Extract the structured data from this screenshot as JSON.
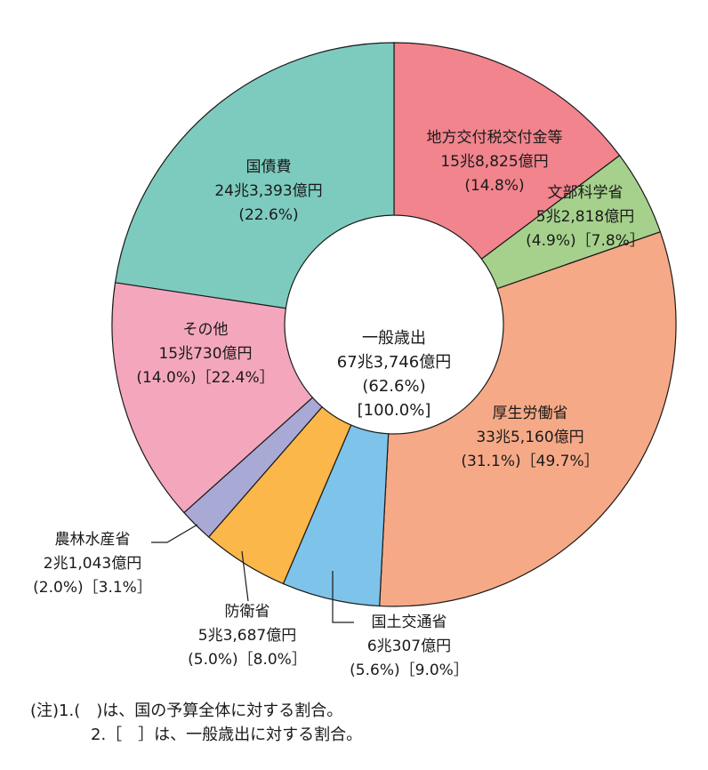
{
  "chart_data": {
    "type": "pie",
    "donut": true,
    "center": {
      "lines": [
        "一般歳出",
        "67兆3,746億円",
        "(62.6%)",
        "[100.0%]"
      ]
    },
    "series": [
      {
        "name": "地方交付税交付金等",
        "amount_oku_yen": 158825,
        "lines": [
          "地方交付税交付金等",
          "15兆8,825億円",
          "(14.8%)"
        ],
        "percent_total": 14.8,
        "color": "#f1848d"
      },
      {
        "name": "文部科学省",
        "amount_oku_yen": 52818,
        "lines": [
          "文部科学省",
          "5兆2,818億円",
          "(4.9%)［7.8%］"
        ],
        "percent_total": 4.9,
        "percent_general": 7.8,
        "color": "#a6d18c"
      },
      {
        "name": "厚生労働省",
        "amount_oku_yen": 335160,
        "lines": [
          "厚生労働省",
          "33兆5,160億円",
          "(31.1%)［49.7%］"
        ],
        "percent_total": 31.1,
        "percent_general": 49.7,
        "color": "#f6a987"
      },
      {
        "name": "国土交通省",
        "amount_oku_yen": 60307,
        "lines": [
          "国土交通省",
          "6兆307億円",
          "(5.6%)［9.0%］"
        ],
        "percent_total": 5.6,
        "percent_general": 9.0,
        "color": "#7ec3ea"
      },
      {
        "name": "防衛省",
        "amount_oku_yen": 53687,
        "lines": [
          "防衛省",
          "5兆3,687億円",
          "(5.0%)［8.0%］"
        ],
        "percent_total": 5.0,
        "percent_general": 8.0,
        "color": "#fbb749"
      },
      {
        "name": "農林水産省",
        "amount_oku_yen": 21043,
        "lines": [
          "農林水産省",
          "2兆1,043億円",
          "(2.0%)［3.1%］"
        ],
        "percent_total": 2.0,
        "percent_general": 3.1,
        "color": "#a9a9d6"
      },
      {
        "name": "その他",
        "amount_oku_yen": 150730,
        "lines": [
          "その他",
          "15兆730億円",
          "(14.0%)［22.4%］"
        ],
        "percent_total": 14.0,
        "percent_general": 22.4,
        "color": "#f4a7bc"
      },
      {
        "name": "国債費",
        "amount_oku_yen": 243393,
        "lines": [
          "国債費",
          "24兆3,393億円",
          "(22.6%)"
        ],
        "percent_total": 22.6,
        "color": "#7dcbbe"
      }
    ]
  },
  "notes": {
    "line1": "(注)1.(　)は、国の予算全体に対する割合。",
    "line2": "2.［　］は、一般歳出に対する割合。"
  }
}
